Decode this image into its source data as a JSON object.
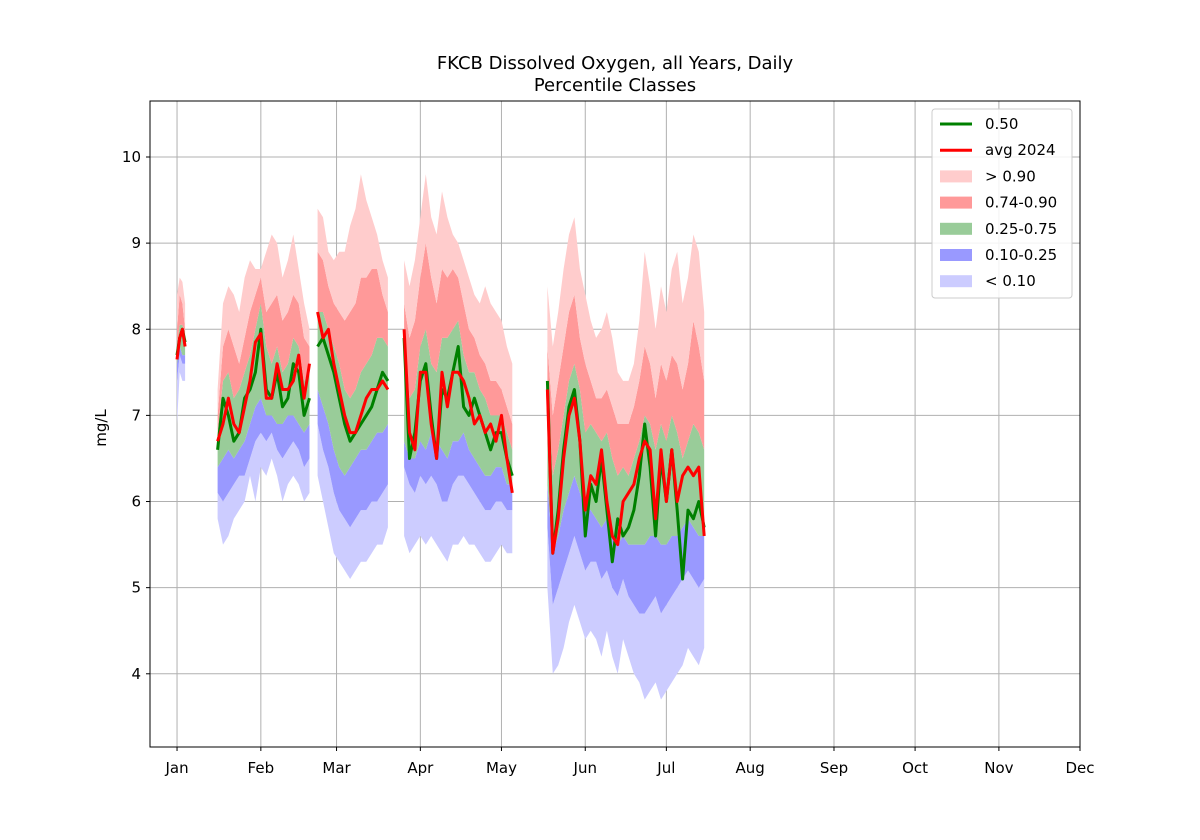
{
  "chart_data": {
    "type": "area",
    "title": "FKCB Dissolved Oxygen, all Years, Daily",
    "subtitle": "Percentile Classes",
    "xlabel": "",
    "ylabel": "mg/L",
    "x_tick_labels": [
      "Jan",
      "Feb",
      "Mar",
      "Apr",
      "May",
      "Jun",
      "Jul",
      "Aug",
      "Sep",
      "Oct",
      "Nov",
      "Dec"
    ],
    "x_ticks_day": [
      0,
      31,
      59,
      90,
      120,
      151,
      181,
      212,
      243,
      273,
      304,
      334
    ],
    "xlim": [
      -10,
      334
    ],
    "y_ticks": [
      4,
      5,
      6,
      7,
      8,
      9,
      10
    ],
    "ylim": [
      3.15,
      10.65
    ],
    "grid": true,
    "legend_position": "top-right",
    "legend": [
      {
        "label": "0.50",
        "kind": "line",
        "color": "#008000"
      },
      {
        "label": "avg 2024",
        "kind": "line",
        "color": "#ff0000"
      },
      {
        "label": "> 0.90",
        "kind": "patch",
        "color": "#ffcccc"
      },
      {
        "label": "0.74-0.90",
        "kind": "patch",
        "color": "#ff9999"
      },
      {
        "label": "0.25-0.75",
        "kind": "patch",
        "color": "#99cc99"
      },
      {
        "label": "0.10-0.25",
        "kind": "patch",
        "color": "#9999ff"
      },
      {
        "label": "< 0.10",
        "kind": "patch",
        "color": "#ccccff"
      }
    ],
    "segments": [
      {
        "x": [
          0,
          1,
          2,
          3
        ],
        "p0": [
          6.9,
          7.5,
          7.4,
          7.4
        ],
        "p10": [
          7.4,
          7.7,
          7.6,
          7.6
        ],
        "p25": [
          7.6,
          7.8,
          7.7,
          7.7
        ],
        "p50": [
          7.7,
          7.9,
          8.0,
          7.85
        ],
        "p75": [
          7.8,
          8.05,
          8.05,
          7.9
        ],
        "p90": [
          8.0,
          8.4,
          8.3,
          8.0
        ],
        "p100": [
          8.4,
          8.6,
          8.55,
          8.3
        ],
        "avg": [
          7.65,
          7.9,
          8.0,
          7.8
        ]
      },
      {
        "x": [
          15,
          17,
          19,
          21,
          23,
          25,
          27,
          29,
          31,
          33,
          35,
          37,
          39,
          41,
          43,
          45,
          47,
          49
        ],
        "p0": [
          5.8,
          5.5,
          5.6,
          5.8,
          5.9,
          6.0,
          6.3,
          6.0,
          6.4,
          6.3,
          6.5,
          6.3,
          6.0,
          6.2,
          6.3,
          6.2,
          6.0,
          6.1
        ],
        "p10": [
          6.1,
          6.0,
          6.1,
          6.2,
          6.3,
          6.3,
          6.5,
          6.7,
          6.8,
          6.7,
          6.8,
          6.6,
          6.5,
          6.6,
          6.7,
          6.6,
          6.4,
          6.5
        ],
        "p25": [
          6.4,
          6.5,
          6.6,
          6.5,
          6.6,
          6.7,
          6.9,
          7.1,
          7.2,
          7.0,
          7.0,
          6.9,
          6.9,
          7.0,
          7.0,
          6.9,
          6.8,
          6.9
        ],
        "p50": [
          6.6,
          7.2,
          7.0,
          6.7,
          6.8,
          7.2,
          7.3,
          7.5,
          8.0,
          7.3,
          7.2,
          7.5,
          7.1,
          7.2,
          7.6,
          7.5,
          7.0,
          7.2
        ],
        "p75": [
          6.8,
          7.4,
          7.5,
          7.2,
          7.3,
          7.5,
          7.7,
          8.0,
          8.3,
          7.8,
          7.6,
          7.8,
          7.5,
          7.6,
          7.9,
          7.8,
          7.4,
          7.5
        ],
        "p90": [
          7.0,
          7.8,
          8.0,
          7.8,
          7.6,
          7.9,
          8.2,
          8.4,
          8.6,
          8.2,
          8.3,
          8.4,
          8.1,
          8.2,
          8.4,
          8.3,
          7.9,
          7.8
        ],
        "p100": [
          7.3,
          8.3,
          8.5,
          8.4,
          8.2,
          8.6,
          8.8,
          8.7,
          8.7,
          8.9,
          9.1,
          9.0,
          8.6,
          8.8,
          9.1,
          8.7,
          8.3,
          8.0
        ],
        "avg": [
          6.7,
          6.9,
          7.2,
          6.9,
          6.8,
          7.1,
          7.4,
          7.85,
          7.95,
          7.2,
          7.2,
          7.6,
          7.3,
          7.3,
          7.4,
          7.7,
          7.2,
          7.6
        ]
      },
      {
        "x": [
          52,
          54,
          56,
          58,
          60,
          62,
          64,
          66,
          68,
          70,
          72,
          74,
          76,
          78
        ],
        "p0": [
          6.3,
          6.0,
          5.7,
          5.4,
          5.3,
          5.2,
          5.1,
          5.2,
          5.3,
          5.3,
          5.4,
          5.5,
          5.5,
          5.7
        ],
        "p10": [
          6.9,
          6.6,
          6.4,
          6.1,
          5.9,
          5.8,
          5.7,
          5.8,
          5.9,
          5.9,
          6.0,
          6.0,
          6.1,
          6.2
        ],
        "p25": [
          7.3,
          7.1,
          6.9,
          6.6,
          6.4,
          6.3,
          6.4,
          6.5,
          6.6,
          6.6,
          6.7,
          6.8,
          6.8,
          6.9
        ],
        "p50": [
          7.8,
          7.9,
          7.7,
          7.5,
          7.2,
          6.9,
          6.7,
          6.8,
          6.9,
          7.0,
          7.1,
          7.3,
          7.5,
          7.4
        ],
        "p75": [
          8.2,
          8.2,
          8.0,
          7.8,
          7.6,
          7.3,
          7.2,
          7.3,
          7.5,
          7.6,
          7.7,
          7.9,
          7.9,
          7.8
        ],
        "p90": [
          8.9,
          8.8,
          8.5,
          8.3,
          8.2,
          8.1,
          8.2,
          8.3,
          8.6,
          8.6,
          8.7,
          8.7,
          8.4,
          8.2
        ],
        "p100": [
          9.4,
          9.3,
          8.9,
          8.8,
          8.9,
          8.9,
          9.2,
          9.4,
          9.8,
          9.5,
          9.3,
          9.1,
          8.8,
          8.6
        ],
        "avg": [
          8.2,
          7.9,
          8.0,
          7.6,
          7.3,
          7.0,
          6.8,
          6.8,
          7.0,
          7.2,
          7.3,
          7.3,
          7.4,
          7.3
        ]
      },
      {
        "x": [
          84,
          86,
          88,
          90,
          92,
          94,
          96,
          98,
          100,
          102,
          104,
          106,
          108,
          110,
          112,
          114,
          116,
          118,
          120,
          122,
          124
        ],
        "p0": [
          5.6,
          5.4,
          5.5,
          5.6,
          5.5,
          5.6,
          5.5,
          5.4,
          5.3,
          5.5,
          5.5,
          5.6,
          5.5,
          5.5,
          5.4,
          5.3,
          5.3,
          5.4,
          5.5,
          5.4,
          5.4
        ],
        "p10": [
          6.4,
          6.2,
          6.1,
          6.3,
          6.2,
          6.3,
          6.2,
          6.0,
          6.0,
          6.2,
          6.3,
          6.3,
          6.2,
          6.1,
          6.0,
          5.9,
          5.9,
          6.0,
          6.0,
          5.9,
          5.9
        ],
        "p25": [
          6.7,
          6.5,
          6.5,
          6.7,
          6.6,
          6.8,
          6.7,
          6.6,
          6.5,
          6.7,
          6.7,
          6.8,
          6.6,
          6.5,
          6.4,
          6.3,
          6.3,
          6.4,
          6.4,
          6.2,
          6.2
        ],
        "p50": [
          7.9,
          6.5,
          6.8,
          7.4,
          7.6,
          7.0,
          6.5,
          7.3,
          7.2,
          7.5,
          7.8,
          7.1,
          7.0,
          7.2,
          7.0,
          6.8,
          6.6,
          6.8,
          6.8,
          6.5,
          6.3
        ],
        "p75": [
          8.0,
          7.2,
          7.3,
          7.8,
          8.0,
          7.6,
          7.5,
          7.9,
          7.9,
          8.0,
          8.1,
          7.7,
          7.5,
          7.5,
          7.3,
          7.2,
          7.0,
          7.0,
          7.0,
          6.8,
          6.6
        ],
        "p90": [
          8.3,
          7.9,
          8.1,
          8.6,
          9.0,
          8.6,
          8.3,
          8.7,
          8.6,
          8.7,
          8.6,
          8.3,
          8.0,
          7.9,
          7.7,
          7.6,
          7.4,
          7.4,
          7.3,
          7.1,
          6.9
        ],
        "p100": [
          8.8,
          8.5,
          8.8,
          9.3,
          9.8,
          9.3,
          9.1,
          9.6,
          9.3,
          9.1,
          9.0,
          8.8,
          8.6,
          8.4,
          8.3,
          8.5,
          8.3,
          8.2,
          8.1,
          7.8,
          7.6
        ],
        "avg": [
          8.0,
          6.8,
          6.6,
          7.5,
          7.5,
          6.9,
          6.5,
          7.5,
          7.1,
          7.5,
          7.5,
          7.4,
          7.2,
          6.9,
          7.0,
          6.8,
          6.9,
          6.7,
          7.0,
          6.5,
          6.1
        ]
      },
      {
        "x": [
          137,
          139,
          141,
          143,
          145,
          147,
          149,
          151,
          153,
          155,
          157,
          159,
          161,
          163,
          165,
          167,
          169,
          171,
          173,
          175,
          177,
          179,
          181,
          183,
          185,
          187,
          189,
          191,
          193,
          195
        ],
        "p0": [
          5.0,
          4.0,
          4.1,
          4.3,
          4.6,
          4.8,
          4.6,
          4.4,
          4.5,
          4.4,
          4.2,
          4.5,
          4.2,
          4.0,
          4.4,
          4.2,
          4.0,
          3.9,
          3.7,
          3.8,
          3.9,
          3.7,
          3.8,
          3.9,
          4.0,
          4.1,
          4.3,
          4.2,
          4.1,
          4.3
        ],
        "p10": [
          5.7,
          4.8,
          5.0,
          5.2,
          5.4,
          5.6,
          5.4,
          5.2,
          5.3,
          5.3,
          5.1,
          5.2,
          5.0,
          4.9,
          5.1,
          4.9,
          4.8,
          4.7,
          4.7,
          4.8,
          4.9,
          4.7,
          4.8,
          4.9,
          5.0,
          5.1,
          5.2,
          5.1,
          5.0,
          5.1
        ],
        "p25": [
          6.2,
          5.4,
          5.6,
          5.9,
          6.1,
          6.3,
          6.1,
          5.9,
          5.9,
          5.8,
          5.7,
          5.8,
          5.6,
          5.5,
          5.6,
          5.5,
          5.5,
          5.5,
          5.5,
          5.6,
          5.6,
          5.5,
          5.5,
          5.6,
          5.6,
          5.7,
          5.8,
          5.7,
          5.6,
          5.6
        ],
        "p50": [
          7.4,
          5.4,
          5.9,
          6.6,
          7.1,
          7.3,
          6.7,
          5.6,
          6.2,
          6.0,
          6.5,
          5.9,
          5.3,
          5.8,
          5.6,
          5.7,
          5.9,
          6.3,
          6.9,
          6.4,
          5.6,
          6.5,
          6.0,
          6.6,
          5.9,
          5.1,
          5.9,
          5.8,
          6.0,
          5.7
        ],
        "p75": [
          7.2,
          6.3,
          6.6,
          7.0,
          7.4,
          7.6,
          7.3,
          6.8,
          6.9,
          6.8,
          6.7,
          6.8,
          6.5,
          6.3,
          6.4,
          6.3,
          6.5,
          6.7,
          7.0,
          6.9,
          6.6,
          6.9,
          6.7,
          7.0,
          6.8,
          6.5,
          6.7,
          6.9,
          6.8,
          6.6
        ],
        "p90": [
          7.8,
          7.0,
          7.4,
          7.8,
          8.2,
          8.4,
          7.9,
          7.6,
          7.4,
          7.2,
          7.2,
          7.3,
          7.1,
          6.9,
          6.9,
          6.9,
          7.1,
          7.4,
          7.8,
          7.6,
          7.2,
          7.6,
          7.4,
          7.7,
          7.6,
          7.3,
          7.6,
          8.1,
          7.8,
          7.4
        ],
        "p100": [
          8.5,
          7.8,
          8.2,
          8.7,
          9.1,
          9.3,
          8.7,
          8.4,
          8.1,
          7.9,
          8.0,
          8.2,
          7.9,
          7.5,
          7.4,
          7.4,
          7.6,
          8.1,
          8.9,
          8.5,
          8.0,
          8.5,
          8.2,
          8.7,
          8.9,
          8.3,
          8.6,
          9.1,
          8.9,
          8.2
        ],
        "avg": [
          7.3,
          5.4,
          5.8,
          6.5,
          7.0,
          7.2,
          6.7,
          5.9,
          6.3,
          6.2,
          6.6,
          6.0,
          5.6,
          5.5,
          6.0,
          6.1,
          6.2,
          6.5,
          6.7,
          6.6,
          5.8,
          6.6,
          6.0,
          6.6,
          6.0,
          6.3,
          6.4,
          6.3,
          6.4,
          5.6
        ]
      }
    ]
  }
}
